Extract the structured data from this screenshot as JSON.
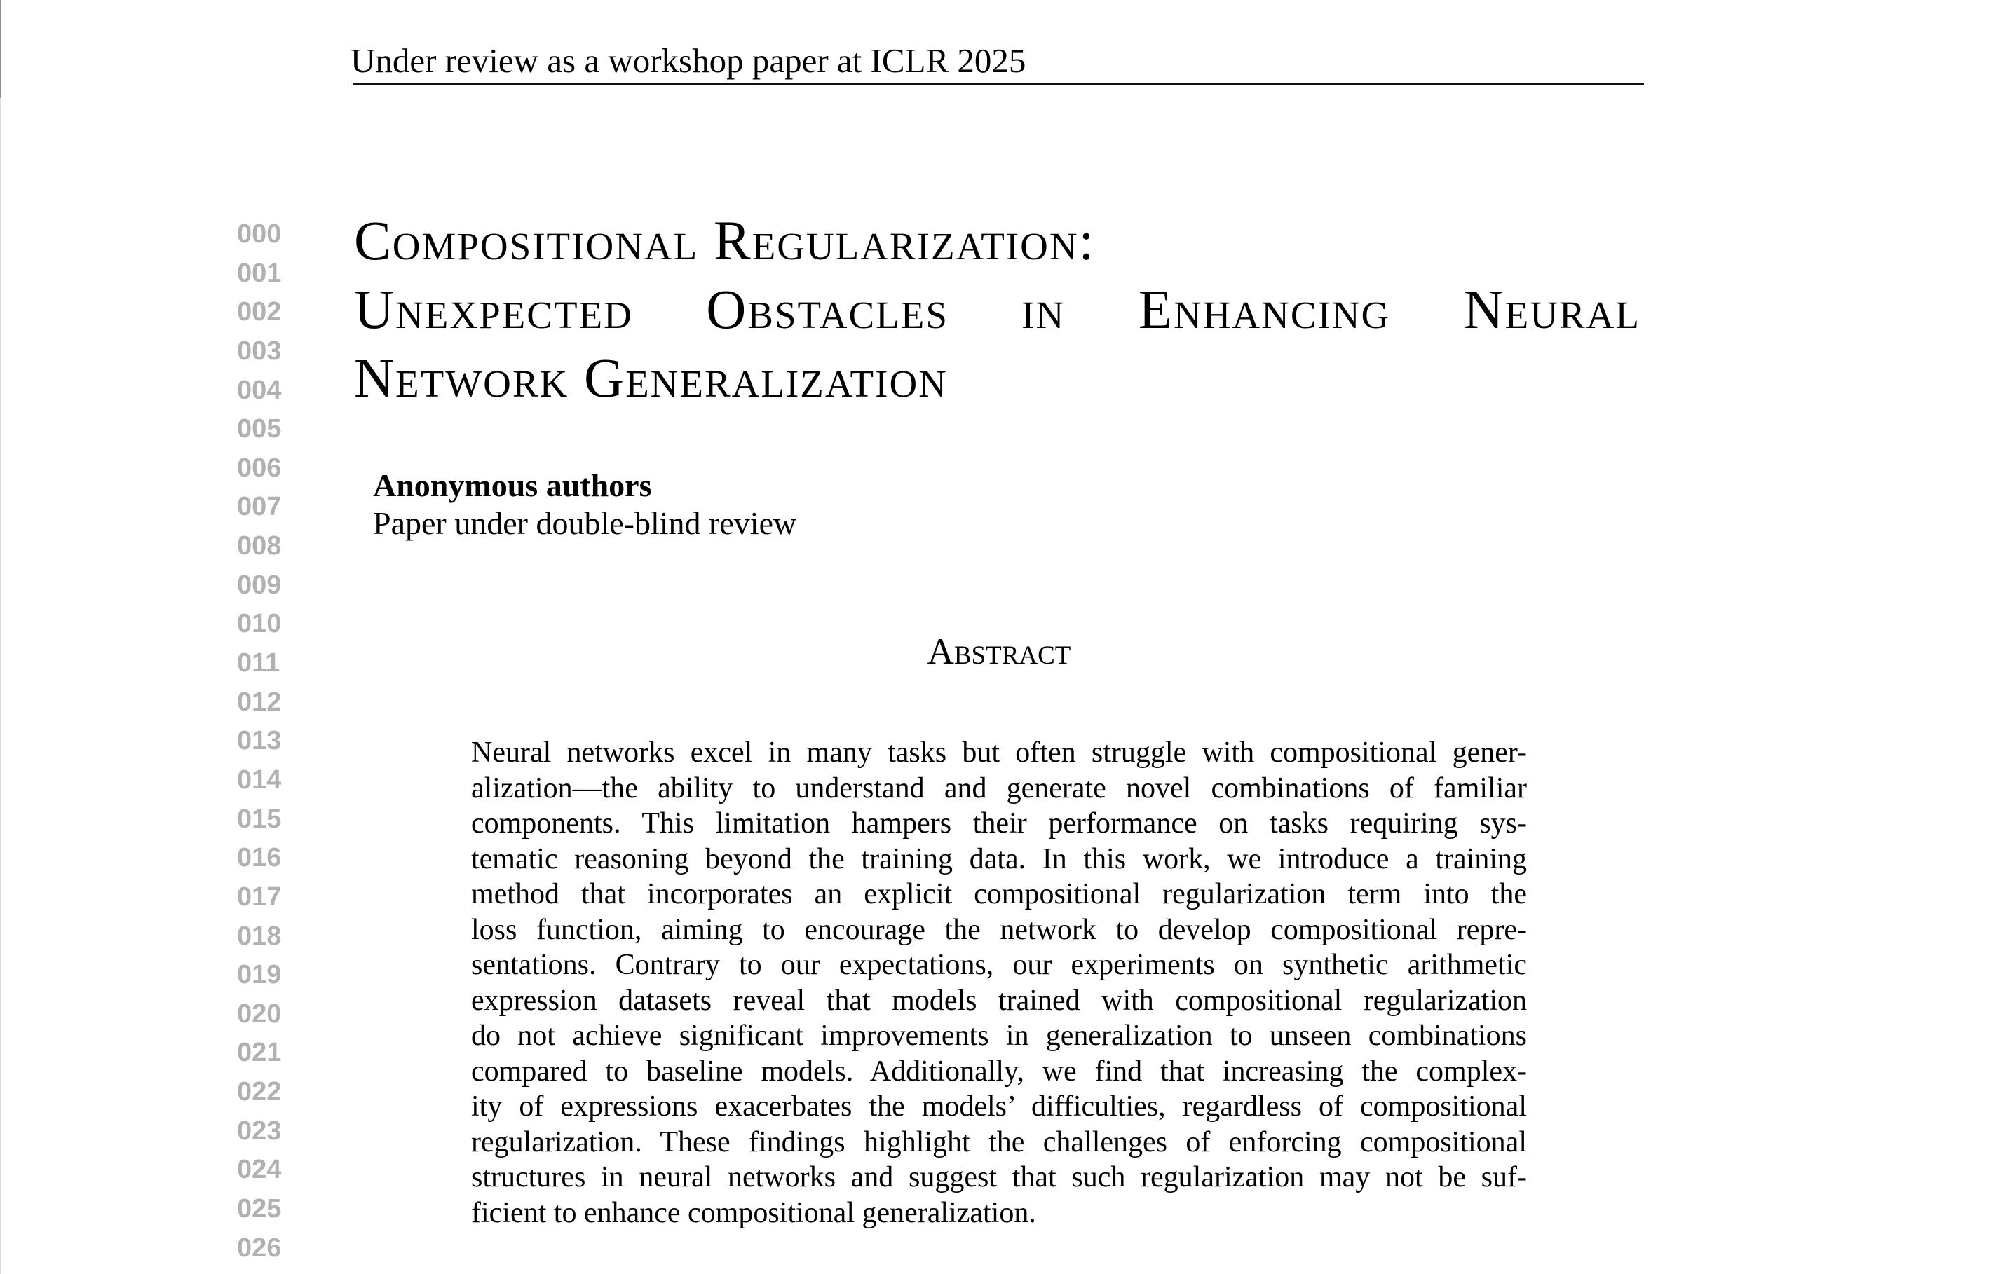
{
  "header": {
    "review_notice": "Under review as a workshop paper at ICLR 2025"
  },
  "line_numbers": [
    "000",
    "001",
    "002",
    "003",
    "004",
    "005",
    "006",
    "007",
    "008",
    "009",
    "010",
    "011",
    "012",
    "013",
    "014",
    "015",
    "016",
    "017",
    "018",
    "019",
    "020",
    "021",
    "022",
    "023",
    "024",
    "025",
    "026"
  ],
  "title": {
    "lines": [
      "Compositional Regularization:",
      "Unexpected Obstacles in Enhancing Neural",
      "Network Generalization"
    ]
  },
  "authors": {
    "name": "Anonymous authors",
    "status": "Paper under double-blind review"
  },
  "abstract": {
    "heading": "Abstract",
    "lines": [
      "Neural networks excel in many tasks but often struggle with compositional gener-",
      "alization—the ability to understand and generate novel combinations of familiar",
      "components.  This limitation hampers their performance on tasks requiring sys-",
      "tematic reasoning beyond the training data. In this work, we introduce a training",
      "method that incorporates an explicit compositional regularization term into the",
      "loss function, aiming to encourage the network to develop compositional repre-",
      "sentations. Contrary to our expectations, our experiments on synthetic arithmetic",
      "expression datasets reveal that models trained with compositional regularization",
      "do not achieve significant improvements in generalization to unseen combinations",
      "compared to baseline models.  Additionally, we find that increasing the complex-",
      "ity of expressions exacerbates the models’ difficulties, regardless of compositional",
      "regularization. These findings highlight the challenges of enforcing compositional",
      "structures in neural networks and suggest that such regularization may not be suf-",
      "ficient to enhance compositional generalization."
    ]
  }
}
